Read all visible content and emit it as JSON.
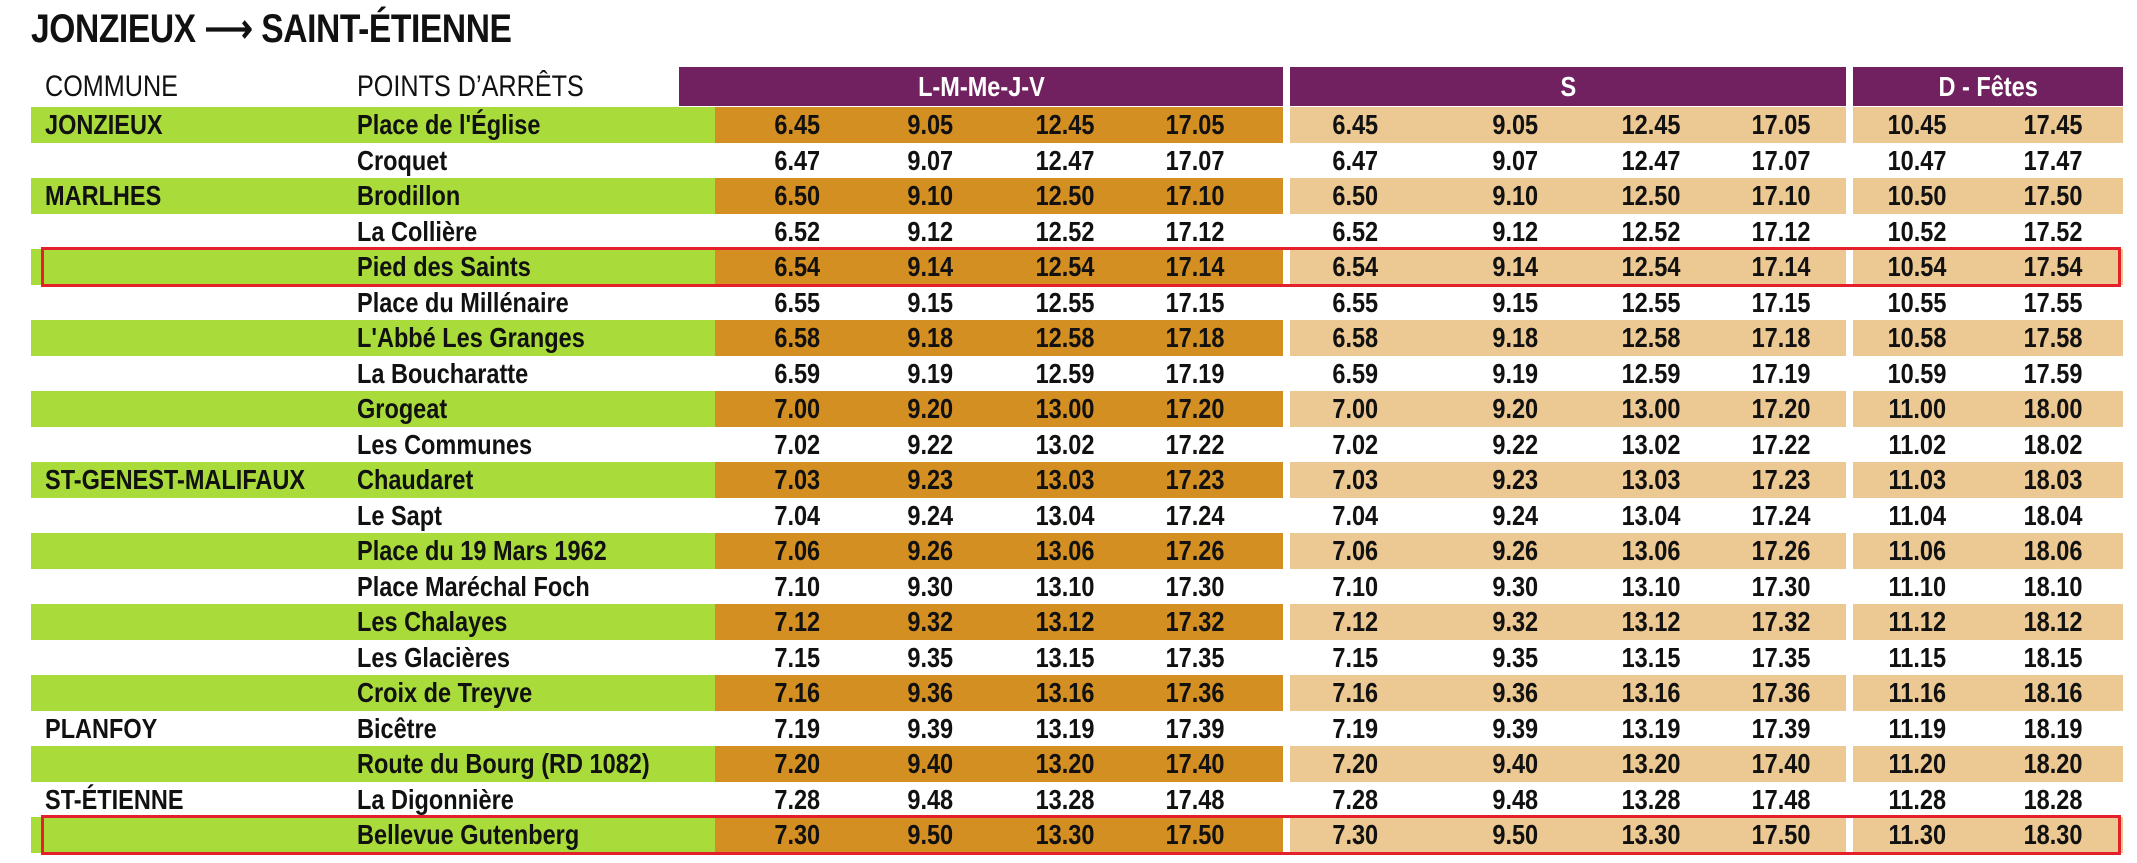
{
  "title": "JONZIEUX ⟶ SAINT-ÉTIENNE",
  "headers": {
    "commune": "COMMUNE",
    "stops": "POINTS D’ARRÊTS",
    "weekday": "L-M-Me-J-V",
    "saturday": "S",
    "sunday": "D - Fêtes"
  },
  "colors": {
    "purple": "#722160",
    "green": "#a9dc3a",
    "orange": "#d48f22",
    "tan": "#ecc893",
    "highlight": "#e4212a"
  },
  "highlighted_stops": [
    "Pied des Saints",
    "Bellevue Gutenberg"
  ],
  "rows": [
    {
      "commune": "JONZIEUX",
      "stop": "Place de l'Église",
      "times": [
        "6.45",
        "9.05",
        "12.45",
        "17.05",
        "6.45",
        "9.05",
        "12.45",
        "17.05",
        "10.45",
        "17.45"
      ]
    },
    {
      "commune": "",
      "stop": "Croquet",
      "times": [
        "6.47",
        "9.07",
        "12.47",
        "17.07",
        "6.47",
        "9.07",
        "12.47",
        "17.07",
        "10.47",
        "17.47"
      ]
    },
    {
      "commune": "MARLHES",
      "stop": "Brodillon",
      "times": [
        "6.50",
        "9.10",
        "12.50",
        "17.10",
        "6.50",
        "9.10",
        "12.50",
        "17.10",
        "10.50",
        "17.50"
      ]
    },
    {
      "commune": "",
      "stop": "La Collière",
      "times": [
        "6.52",
        "9.12",
        "12.52",
        "17.12",
        "6.52",
        "9.12",
        "12.52",
        "17.12",
        "10.52",
        "17.52"
      ]
    },
    {
      "commune": "",
      "stop": "Pied des Saints",
      "times": [
        "6.54",
        "9.14",
        "12.54",
        "17.14",
        "6.54",
        "9.14",
        "12.54",
        "17.14",
        "10.54",
        "17.54"
      ]
    },
    {
      "commune": "",
      "stop": "Place du Millénaire",
      "times": [
        "6.55",
        "9.15",
        "12.55",
        "17.15",
        "6.55",
        "9.15",
        "12.55",
        "17.15",
        "10.55",
        "17.55"
      ]
    },
    {
      "commune": "",
      "stop": "L'Abbé Les Granges",
      "times": [
        "6.58",
        "9.18",
        "12.58",
        "17.18",
        "6.58",
        "9.18",
        "12.58",
        "17.18",
        "10.58",
        "17.58"
      ]
    },
    {
      "commune": "",
      "stop": "La Boucharatte",
      "times": [
        "6.59",
        "9.19",
        "12.59",
        "17.19",
        "6.59",
        "9.19",
        "12.59",
        "17.19",
        "10.59",
        "17.59"
      ]
    },
    {
      "commune": "",
      "stop": "Grogeat",
      "times": [
        "7.00",
        "9.20",
        "13.00",
        "17.20",
        "7.00",
        "9.20",
        "13.00",
        "17.20",
        "11.00",
        "18.00"
      ]
    },
    {
      "commune": "",
      "stop": "Les Communes",
      "times": [
        "7.02",
        "9.22",
        "13.02",
        "17.22",
        "7.02",
        "9.22",
        "13.02",
        "17.22",
        "11.02",
        "18.02"
      ]
    },
    {
      "commune": "ST-GENEST-MALIFAUX",
      "stop": "Chaudaret",
      "times": [
        "7.03",
        "9.23",
        "13.03",
        "17.23",
        "7.03",
        "9.23",
        "13.03",
        "17.23",
        "11.03",
        "18.03"
      ]
    },
    {
      "commune": "",
      "stop": "Le Sapt",
      "times": [
        "7.04",
        "9.24",
        "13.04",
        "17.24",
        "7.04",
        "9.24",
        "13.04",
        "17.24",
        "11.04",
        "18.04"
      ]
    },
    {
      "commune": "",
      "stop": "Place du 19 Mars 1962",
      "times": [
        "7.06",
        "9.26",
        "13.06",
        "17.26",
        "7.06",
        "9.26",
        "13.06",
        "17.26",
        "11.06",
        "18.06"
      ]
    },
    {
      "commune": "",
      "stop": "Place Maréchal Foch",
      "times": [
        "7.10",
        "9.30",
        "13.10",
        "17.30",
        "7.10",
        "9.30",
        "13.10",
        "17.30",
        "11.10",
        "18.10"
      ]
    },
    {
      "commune": "",
      "stop": "Les Chalayes",
      "times": [
        "7.12",
        "9.32",
        "13.12",
        "17.32",
        "7.12",
        "9.32",
        "13.12",
        "17.32",
        "11.12",
        "18.12"
      ]
    },
    {
      "commune": "",
      "stop": "Les Glacières",
      "times": [
        "7.15",
        "9.35",
        "13.15",
        "17.35",
        "7.15",
        "9.35",
        "13.15",
        "17.35",
        "11.15",
        "18.15"
      ]
    },
    {
      "commune": "",
      "stop": "Croix de Treyve",
      "times": [
        "7.16",
        "9.36",
        "13.16",
        "17.36",
        "7.16",
        "9.36",
        "13.16",
        "17.36",
        "11.16",
        "18.16"
      ]
    },
    {
      "commune": "PLANFOY",
      "stop": "Bicêtre",
      "times": [
        "7.19",
        "9.39",
        "13.19",
        "17.39",
        "7.19",
        "9.39",
        "13.19",
        "17.39",
        "11.19",
        "18.19"
      ]
    },
    {
      "commune": "",
      "stop": "Route du Bourg (RD 1082)",
      "times": [
        "7.20",
        "9.40",
        "13.20",
        "17.40",
        "7.20",
        "9.40",
        "13.20",
        "17.40",
        "11.20",
        "18.20"
      ]
    },
    {
      "commune": "ST-ÉTIENNE",
      "stop": "La Digonnière",
      "times": [
        "7.28",
        "9.48",
        "13.28",
        "17.48",
        "7.28",
        "9.48",
        "13.28",
        "17.48",
        "11.28",
        "18.28"
      ]
    },
    {
      "commune": "",
      "stop": "Bellevue Gutenberg",
      "times": [
        "7.30",
        "9.50",
        "13.30",
        "17.50",
        "7.30",
        "9.50",
        "13.30",
        "17.50",
        "11.30",
        "18.30"
      ]
    }
  ]
}
